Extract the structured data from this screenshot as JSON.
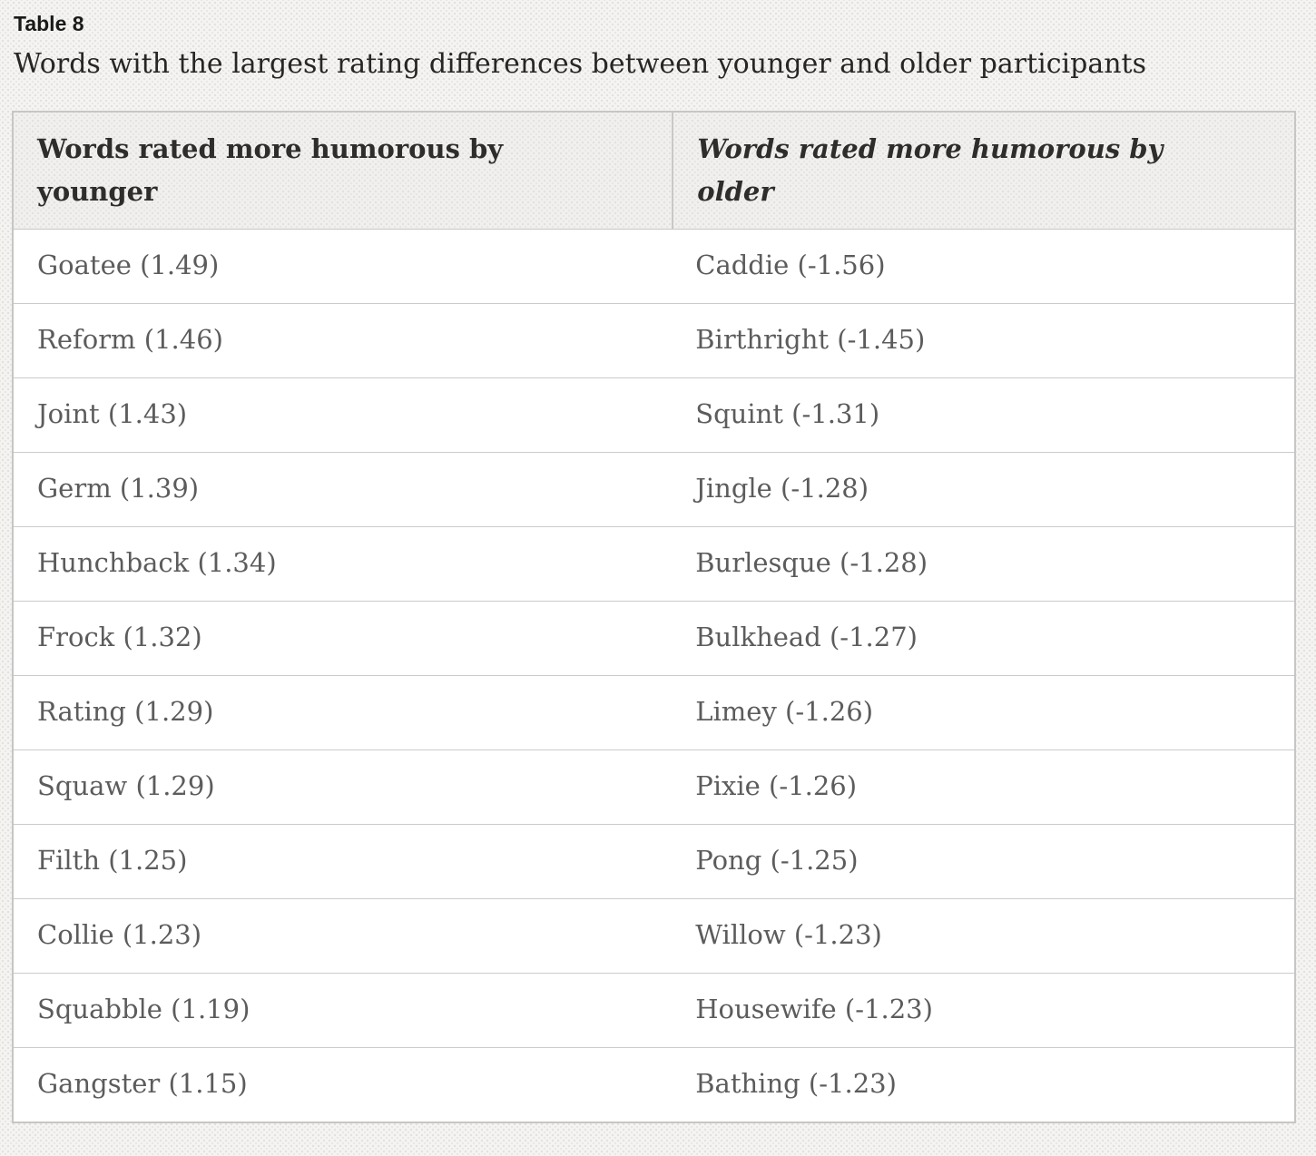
{
  "page": {
    "label": "Table 8",
    "caption": "Words with the largest rating differences between younger and older participants"
  },
  "table": {
    "columns": [
      {
        "label": "Words rated more humorous by younger"
      },
      {
        "label": "Words rated more humorous by older"
      }
    ],
    "rows": [
      {
        "younger": "Goatee (1.49)",
        "older": "Caddie (-1.56)"
      },
      {
        "younger": "Reform (1.46)",
        "older": "Birthright (-1.45)"
      },
      {
        "younger": "Joint (1.43)",
        "older": "Squint (-1.31)"
      },
      {
        "younger": "Germ (1.39)",
        "older": "Jingle (-1.28)"
      },
      {
        "younger": "Hunchback (1.34)",
        "older": "Burlesque (-1.28)"
      },
      {
        "younger": "Frock (1.32)",
        "older": "Bulkhead (-1.27)"
      },
      {
        "younger": "Rating (1.29)",
        "older": "Limey (-1.26)"
      },
      {
        "younger": "Squaw (1.29)",
        "older": "Pixie (-1.26)"
      },
      {
        "younger": "Filth (1.25)",
        "older": "Pong (-1.25)"
      },
      {
        "younger": "Collie (1.23)",
        "older": "Willow (-1.23)"
      },
      {
        "younger": "Squabble (1.19)",
        "older": "Housewife (-1.23)"
      },
      {
        "younger": "Gangster (1.15)",
        "older": "Bathing (-1.23)"
      }
    ]
  },
  "colors": {
    "page_background": "#f5f4f2",
    "header_background": "#f1f0ee",
    "table_border": "#c7c6c4",
    "row_border": "#cccbc9",
    "header_text": "#2f2d2b",
    "body_text": "#5c5c5c",
    "caption_text": "#272624",
    "label_text": "#1a1a1a"
  }
}
